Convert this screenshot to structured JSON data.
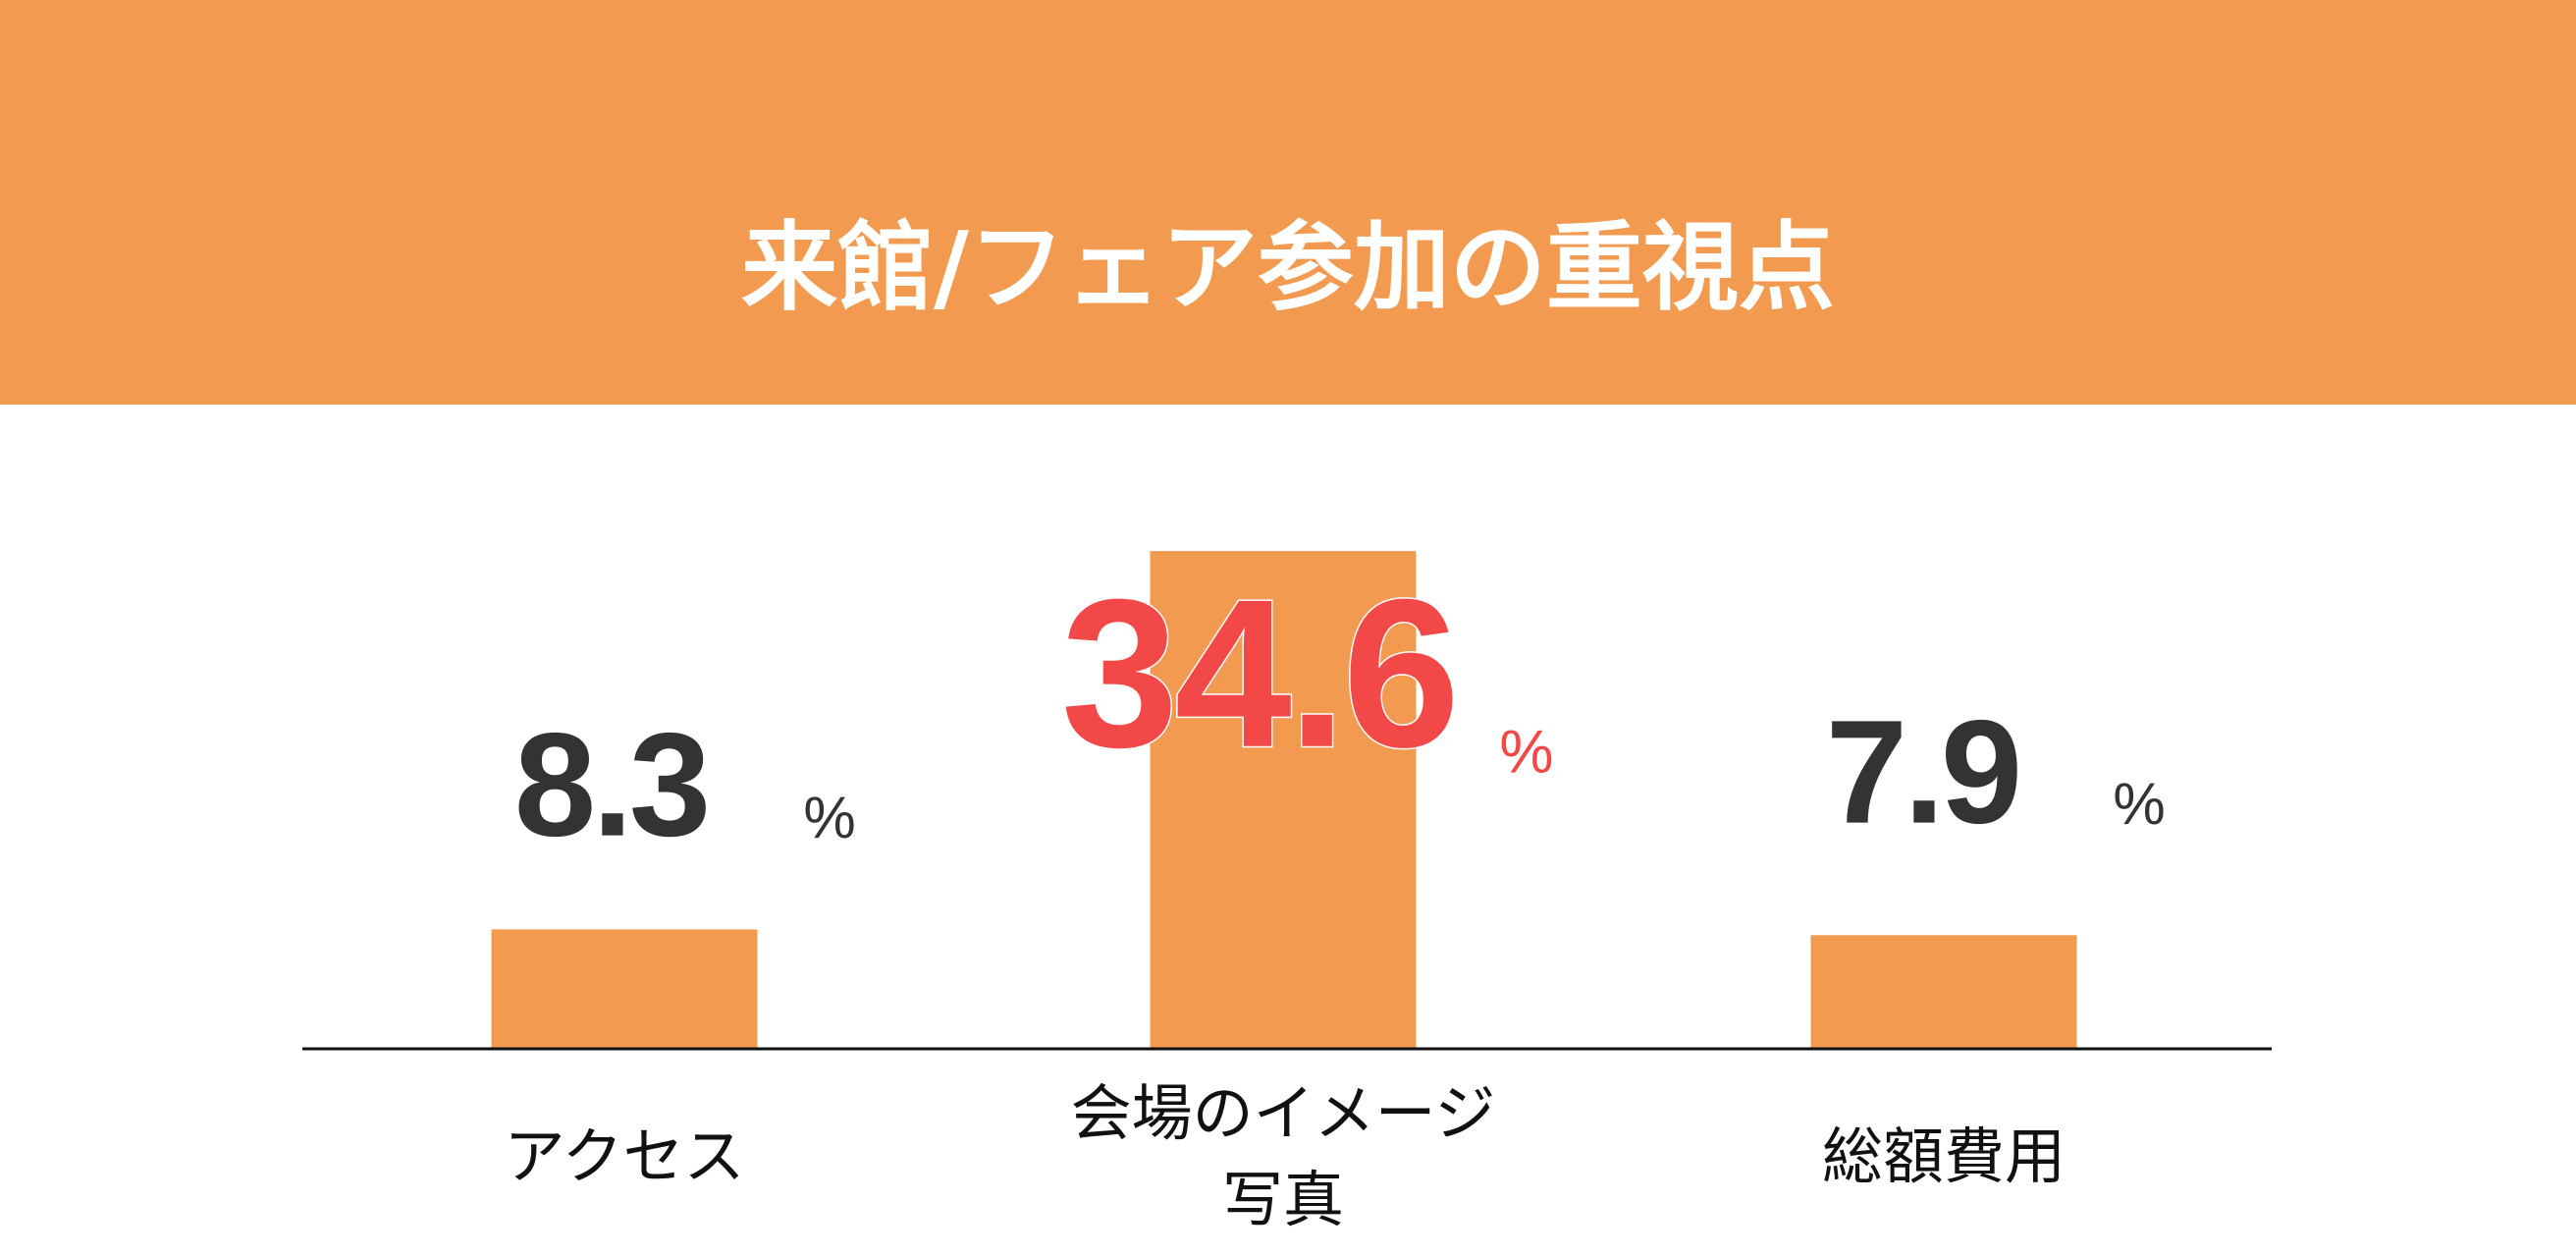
{
  "chart_data": {
    "type": "bar",
    "title": "来館/フェア参加の重視点",
    "categories": [
      "アクセス",
      "会場のイメージ\n写真",
      "総額費用"
    ],
    "values": [
      8.3,
      34.6,
      7.9
    ],
    "unit": "%",
    "color": "#f39a51",
    "label_colors": [
      "#333333",
      "#f24848",
      "#333333"
    ],
    "ylim": [
      0,
      40
    ]
  }
}
